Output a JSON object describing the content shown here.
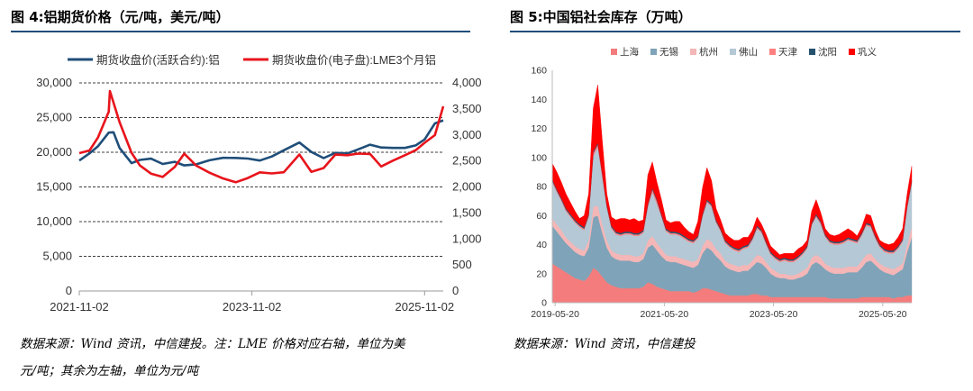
{
  "left": {
    "title": "图 4:铝期货价格（元/吨，美元/吨）",
    "source_line1": "数据来源：Wind 资讯，中信建投。注：LME 价格对应右轴，单位为美",
    "source_line2": "元/吨；其余为左轴，单位为元/吨"
  },
  "right": {
    "title": "图 5:中国铝社会库存（万吨）",
    "source_line1": "数据来源：Wind 资讯，中信建投"
  },
  "chart_data": [
    {
      "type": "line",
      "series": [
        {
          "name": "期货收盘价(活跃合约):铝",
          "axis": "left",
          "color": "#1f4e79",
          "x": [
            "2021-11-02",
            "2021-12-15",
            "2022-01-20",
            "2022-03-05",
            "2022-03-25",
            "2022-04-20",
            "2022-06-10",
            "2022-07-15",
            "2022-09-01",
            "2022-10-20",
            "2022-12-10",
            "2023-01-20",
            "2023-03-10",
            "2023-05-05",
            "2023-07-01",
            "2023-08-25",
            "2023-10-15",
            "2023-12-05",
            "2024-01-25",
            "2024-03-15",
            "2024-05-20",
            "2024-07-10",
            "2024-09-01",
            "2024-10-20",
            "2024-12-10",
            "2025-01-25",
            "2025-03-15",
            "2025-05-01",
            "2025-06-20",
            "2025-08-10",
            "2025-09-25",
            "2025-11-02",
            "2025-12-15",
            "2026-01-20"
          ],
          "values": [
            18800,
            19500,
            20500,
            22800,
            23200,
            21000,
            18500,
            18600,
            18700,
            18200,
            18900,
            18500,
            18400,
            18600,
            18800,
            19000,
            19300,
            19200,
            19600,
            20100,
            21000,
            19800,
            19300,
            20300,
            20100,
            20300,
            20700,
            20400,
            20700,
            21000,
            21300,
            21800,
            23800,
            24600
          ]
        },
        {
          "name": "期货收盘价(电子盘):LME3个月铝",
          "axis": "right",
          "color": "#e8141c",
          "x": [
            "2021-11-02",
            "2021-12-15",
            "2022-01-20",
            "2022-03-05",
            "2022-03-10",
            "2022-04-20",
            "2022-06-10",
            "2022-07-15",
            "2022-09-01",
            "2022-10-20",
            "2022-12-10",
            "2023-01-20",
            "2023-03-10",
            "2023-05-05",
            "2023-07-01",
            "2023-08-25",
            "2023-10-15",
            "2023-12-05",
            "2024-01-25",
            "2024-03-15",
            "2024-05-20",
            "2024-07-10",
            "2024-09-01",
            "2024-10-20",
            "2024-12-10",
            "2025-01-25",
            "2025-03-15",
            "2025-05-01",
            "2025-06-20",
            "2025-08-10",
            "2025-09-25",
            "2025-11-02",
            "2025-12-15",
            "2026-01-20"
          ],
          "values": [
            2650,
            2700,
            3000,
            3500,
            3850,
            3200,
            2600,
            2400,
            2300,
            2250,
            2400,
            2600,
            2350,
            2250,
            2200,
            2150,
            2200,
            2250,
            2200,
            2250,
            2650,
            2350,
            2400,
            2600,
            2550,
            2600,
            2650,
            2450,
            2550,
            2600,
            2650,
            2800,
            3000,
            3550
          ]
        }
      ],
      "left_axis": {
        "ylim": [
          0,
          30000
        ],
        "ticks": [
          "0",
          "5,000",
          "10,000",
          "15,000",
          "20,000",
          "25,000",
          "30,000"
        ]
      },
      "right_axis": {
        "ylim": [
          0,
          4000
        ],
        "ticks": [
          "0",
          "500",
          "1,000",
          "1,500",
          "2,000",
          "2,500",
          "3,000",
          "3,500",
          "4,000"
        ]
      },
      "x_ticks": [
        "2021-11-02",
        "2023-11-02",
        "2025-11-02"
      ],
      "grid": "horizontal dashed",
      "legend": "top"
    },
    {
      "type": "area",
      "stacked": true,
      "x_ticks": [
        "2019-05-20",
        "2021-05-20",
        "2023-05-20",
        "2025-05-20"
      ],
      "ylim": [
        0,
        160
      ],
      "y_ticks": [
        "0",
        "20",
        "40",
        "60",
        "80",
        "100",
        "120",
        "140",
        "160"
      ],
      "legend": "top",
      "x": [
        "2019-05",
        "2019-06",
        "2019-07",
        "2019-08",
        "2019-09",
        "2019-10",
        "2019-11",
        "2019-12",
        "2020-01",
        "2020-02",
        "2020-03",
        "2020-04",
        "2020-05",
        "2020-06",
        "2020-07",
        "2020-08",
        "2020-09",
        "2020-10",
        "2020-11",
        "2020-12",
        "2021-01",
        "2021-02",
        "2021-03",
        "2021-04",
        "2021-05",
        "2021-06",
        "2021-07",
        "2021-08",
        "2021-09",
        "2021-10",
        "2021-11",
        "2021-12",
        "2022-01",
        "2022-02",
        "2022-03",
        "2022-04",
        "2022-05",
        "2022-06",
        "2022-07",
        "2022-08",
        "2022-09",
        "2022-10",
        "2022-11",
        "2022-12",
        "2023-01",
        "2023-02",
        "2023-03",
        "2023-04",
        "2023-05",
        "2023-06",
        "2023-07",
        "2023-08",
        "2023-09",
        "2023-10",
        "2023-11",
        "2023-12",
        "2024-01",
        "2024-02",
        "2024-03",
        "2024-04",
        "2024-05",
        "2024-06",
        "2024-07",
        "2024-08",
        "2024-09",
        "2024-10",
        "2024-11",
        "2024-12",
        "2025-01",
        "2025-02",
        "2025-03",
        "2025-04",
        "2025-05",
        "2025-06",
        "2025-07",
        "2025-08",
        "2025-09",
        "2025-10",
        "2025-11",
        "2025-12"
      ],
      "series": [
        {
          "name": "上海",
          "color": "#f47c7c",
          "values": [
            27,
            25,
            23,
            21,
            19,
            17,
            16,
            15,
            18,
            24,
            22,
            18,
            14,
            12,
            11,
            10,
            10,
            10,
            10,
            10,
            11,
            14,
            13,
            11,
            10,
            9,
            8,
            8,
            8,
            8,
            8,
            7,
            8,
            10,
            10,
            9,
            8,
            7,
            6,
            5,
            5,
            5,
            5,
            5,
            6,
            6,
            5,
            5,
            4,
            4,
            4,
            4,
            4,
            4,
            4,
            4,
            4,
            4,
            4,
            4,
            4,
            3,
            3,
            3,
            3,
            3,
            3,
            3,
            4,
            4,
            4,
            4,
            4,
            4,
            4,
            3,
            4,
            4,
            5,
            5
          ]
        },
        {
          "name": "无锡",
          "color": "#7fa3b8",
          "values": [
            26,
            24,
            22,
            20,
            19,
            18,
            17,
            17,
            20,
            35,
            38,
            30,
            24,
            20,
            19,
            19,
            19,
            19,
            18,
            18,
            19,
            24,
            27,
            25,
            22,
            20,
            20,
            20,
            19,
            18,
            17,
            17,
            18,
            24,
            28,
            27,
            24,
            22,
            19,
            18,
            17,
            16,
            17,
            17,
            19,
            22,
            22,
            19,
            16,
            14,
            13,
            13,
            12,
            12,
            13,
            14,
            16,
            22,
            24,
            22,
            19,
            18,
            17,
            17,
            17,
            18,
            18,
            18,
            20,
            24,
            25,
            22,
            19,
            17,
            16,
            16,
            17,
            19,
            30,
            40
          ]
        },
        {
          "name": "杭州",
          "color": "#f4b6b6",
          "values": [
            5,
            5,
            5,
            4,
            4,
            4,
            4,
            4,
            5,
            7,
            7,
            6,
            5,
            4,
            4,
            4,
            4,
            4,
            4,
            4,
            4,
            5,
            6,
            5,
            5,
            4,
            4,
            4,
            4,
            4,
            4,
            4,
            4,
            5,
            6,
            6,
            5,
            5,
            4,
            4,
            4,
            4,
            4,
            4,
            4,
            5,
            5,
            4,
            4,
            4,
            3,
            3,
            3,
            3,
            3,
            4,
            4,
            5,
            5,
            5,
            4,
            4,
            4,
            4,
            4,
            4,
            4,
            4,
            5,
            5,
            5,
            4,
            4,
            4,
            4,
            4,
            4,
            4,
            5,
            7
          ]
        },
        {
          "name": "佛山",
          "color": "#b4c8d6",
          "values": [
            25,
            22,
            20,
            18,
            17,
            16,
            15,
            14,
            16,
            35,
            40,
            32,
            22,
            15,
            13,
            13,
            14,
            14,
            14,
            14,
            14,
            23,
            30,
            27,
            22,
            16,
            15,
            15,
            15,
            14,
            13,
            13,
            14,
            20,
            25,
            24,
            18,
            15,
            12,
            11,
            10,
            10,
            11,
            12,
            14,
            18,
            16,
            12,
            9,
            8,
            8,
            9,
            9,
            9,
            10,
            11,
            13,
            22,
            26,
            23,
            18,
            16,
            16,
            16,
            17,
            18,
            17,
            16,
            17,
            20,
            18,
            14,
            11,
            10,
            10,
            11,
            12,
            15,
            25,
            30
          ]
        },
        {
          "name": "天津",
          "color": "#ff8080",
          "values": [
            1,
            1,
            1,
            1,
            1,
            1,
            1,
            1,
            1,
            2,
            2,
            2,
            1,
            1,
            1,
            1,
            1,
            1,
            1,
            1,
            1,
            1,
            2,
            2,
            1,
            1,
            1,
            1,
            1,
            1,
            1,
            1,
            1,
            1,
            1,
            1,
            1,
            1,
            1,
            1,
            1,
            1,
            1,
            1,
            1,
            1,
            1,
            1,
            1,
            1,
            1,
            1,
            1,
            1,
            1,
            1,
            1,
            1,
            1,
            1,
            1,
            1,
            1,
            1,
            1,
            1,
            1,
            1,
            1,
            1,
            1,
            1,
            1,
            1,
            1,
            1,
            1,
            1,
            1,
            1
          ]
        },
        {
          "name": "沈阳",
          "color": "#24526e",
          "values": [
            1,
            1,
            1,
            1,
            1,
            1,
            1,
            1,
            1,
            1,
            1,
            1,
            1,
            1,
            1,
            1,
            1,
            1,
            1,
            1,
            1,
            1,
            1,
            1,
            1,
            1,
            1,
            1,
            1,
            1,
            1,
            1,
            1,
            1,
            1,
            1,
            1,
            1,
            1,
            1,
            1,
            1,
            1,
            1,
            1,
            1,
            1,
            1,
            1,
            1,
            1,
            1,
            1,
            1,
            1,
            1,
            1,
            1,
            1,
            1,
            1,
            1,
            1,
            1,
            1,
            1,
            1,
            1,
            1,
            1,
            1,
            1,
            1,
            1,
            1,
            1,
            1,
            1,
            1,
            1
          ]
        },
        {
          "name": "巩义",
          "color": "#ff0000",
          "values": [
            11,
            12,
            11,
            10,
            8,
            6,
            4,
            8,
            14,
            30,
            40,
            22,
            8,
            6,
            8,
            10,
            9,
            8,
            10,
            8,
            7,
            20,
            18,
            12,
            10,
            6,
            6,
            7,
            8,
            6,
            5,
            4,
            10,
            18,
            22,
            16,
            8,
            6,
            5,
            5,
            5,
            6,
            6,
            5,
            5,
            6,
            4,
            5,
            4,
            4,
            3,
            3,
            4,
            4,
            5,
            4,
            4,
            8,
            10,
            6,
            4,
            4,
            4,
            5,
            6,
            6,
            5,
            3,
            4,
            6,
            6,
            4,
            3,
            4,
            4,
            5,
            6,
            7,
            8,
            10
          ]
        }
      ]
    }
  ]
}
